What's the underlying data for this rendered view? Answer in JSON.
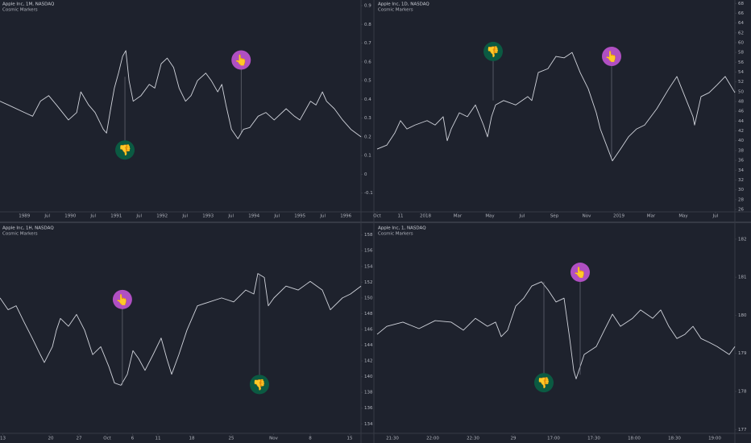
{
  "chart_data": [
    {
      "type": "line",
      "title": "Apple Inc, 1M, NASDAQ",
      "subtitle": "Cosmic Markers",
      "color": "#d1d4dc",
      "xlim": [
        1988.47,
        1996.33
      ],
      "ylim": [
        -0.2,
        0.93
      ],
      "yticks": [
        0.9,
        0.8,
        0.7,
        0.6,
        0.5,
        0.4,
        0.3,
        0.2,
        0.1,
        0,
        -0.1
      ],
      "xticks": [
        1989,
        {
          "value": 1989.5,
          "label": "Jul"
        },
        1990,
        {
          "value": 1990.5,
          "label": "Jul"
        },
        1991,
        {
          "value": 1991.5,
          "label": "Jul"
        },
        1992,
        {
          "value": 1992.5,
          "label": "Jul"
        },
        1993,
        {
          "value": 1993.5,
          "label": "Jul"
        },
        1994,
        {
          "value": 1994.5,
          "label": "Jul"
        },
        1995,
        {
          "value": 1995.5,
          "label": "Jul"
        },
        1996
      ],
      "x": [
        1988.47,
        1988.65,
        1989.0,
        1989.18,
        1989.35,
        1989.53,
        1989.7,
        1989.96,
        1990.14,
        1990.23,
        1990.4,
        1990.54,
        1990.72,
        1990.79,
        1990.88,
        1990.96,
        1991.05,
        1991.14,
        1991.21,
        1991.28,
        1991.37,
        1991.54,
        1991.72,
        1991.84,
        1991.98,
        1992.11,
        1992.25,
        1992.37,
        1992.51,
        1992.63,
        1992.77,
        1992.95,
        1993.07,
        1993.21,
        1993.3,
        1993.39,
        1993.51,
        1993.65,
        1993.77,
        1993.91,
        1994.09,
        1994.26,
        1994.44,
        1994.7,
        1994.88,
        1995.0,
        1995.23,
        1995.35,
        1995.49,
        1995.58,
        1995.75,
        1995.93,
        1996.11,
        1996.33
      ],
      "values": [
        0.39,
        0.37,
        0.33,
        0.31,
        0.39,
        0.42,
        0.37,
        0.29,
        0.33,
        0.44,
        0.37,
        0.33,
        0.24,
        0.22,
        0.35,
        0.46,
        0.54,
        0.63,
        0.66,
        0.5,
        0.39,
        0.42,
        0.48,
        0.46,
        0.59,
        0.62,
        0.57,
        0.46,
        0.39,
        0.42,
        0.5,
        0.54,
        0.5,
        0.44,
        0.48,
        0.37,
        0.24,
        0.19,
        0.24,
        0.25,
        0.31,
        0.33,
        0.29,
        0.35,
        0.31,
        0.29,
        0.39,
        0.37,
        0.44,
        0.39,
        0.35,
        0.29,
        0.24,
        0.2
      ],
      "markers": [
        {
          "x": 1991.19,
          "y": 0.13,
          "anchor": 0.52,
          "label": "👎",
          "color": "#0b5a42"
        },
        {
          "x": 1993.72,
          "y": 0.61,
          "anchor": 0.22,
          "label": "👆",
          "color": "#b04fc2"
        }
      ]
    },
    {
      "type": "line",
      "title": "Apple Inc, 1D, NASDAQ",
      "subtitle": "Cosmic Markers",
      "color": "#d1d4dc",
      "xlim": [
        -0.1,
        22.2
      ],
      "ylim": [
        25.5,
        68.7
      ],
      "yticks": [
        68,
        66,
        64,
        62,
        60,
        58,
        56,
        54,
        52,
        50,
        48,
        46,
        44,
        42,
        40,
        38,
        36,
        34,
        32,
        30,
        28,
        26
      ],
      "xticks": [
        {
          "value": 0,
          "label": "Oct"
        },
        {
          "value": 1.45,
          "label": "11"
        },
        {
          "value": 3,
          "label": "2018"
        },
        {
          "value": 5,
          "label": "Mar"
        },
        {
          "value": 7,
          "label": "May"
        },
        {
          "value": 9,
          "label": "Jul"
        },
        {
          "value": 11,
          "label": "Sep"
        },
        {
          "value": 13,
          "label": "Nov"
        },
        {
          "value": 15,
          "label": "2019"
        },
        {
          "value": 17,
          "label": "Mar"
        },
        {
          "value": 19,
          "label": "May"
        },
        {
          "value": 21,
          "label": "Jul"
        }
      ],
      "x": [
        0,
        0.6,
        1.1,
        1.45,
        1.85,
        2.35,
        3.1,
        3.6,
        4.1,
        4.35,
        4.6,
        5.1,
        5.6,
        6.1,
        6.6,
        6.85,
        7.1,
        7.35,
        7.85,
        8.6,
        9.35,
        9.6,
        10.0,
        10.6,
        11.1,
        11.6,
        12.1,
        12.6,
        13.1,
        13.6,
        13.85,
        14.6,
        15.1,
        15.6,
        16.1,
        16.6,
        17.35,
        18.1,
        18.6,
        19.6,
        19.7,
        20.1,
        20.6,
        21.1,
        21.6,
        22.2
      ],
      "values": [
        38.3,
        39.1,
        41.6,
        44.1,
        42.4,
        43.2,
        44.1,
        43.2,
        44.9,
        40.0,
        42.4,
        45.7,
        44.9,
        47.3,
        43.2,
        40.8,
        44.9,
        47.3,
        48.2,
        47.3,
        49.0,
        48.2,
        53.9,
        54.7,
        57.2,
        56.9,
        58.0,
        53.9,
        50.6,
        45.7,
        42.4,
        35.9,
        38.3,
        40.8,
        42.4,
        43.2,
        46.5,
        50.6,
        53.1,
        44.9,
        43.2,
        49.0,
        49.8,
        51.4,
        53.1,
        49.8
      ],
      "markers": [
        {
          "x": 7.2,
          "y": 58.2,
          "anchor": 48.2,
          "label": "👎",
          "color": "#0b5a42"
        },
        {
          "x": 14.55,
          "y": 57.2,
          "anchor": 36.7,
          "label": "👆",
          "color": "#b04fc2"
        }
      ]
    },
    {
      "type": "line",
      "title": "Apple Inc, 1H, NASDAQ",
      "subtitle": "Cosmic Markers",
      "color": "#d1d4dc",
      "xlim": [
        -9,
        55
      ],
      "ylim": [
        132.8,
        159.4
      ],
      "yticks": [
        158,
        156,
        154,
        152,
        150,
        148,
        146,
        144,
        142,
        140,
        138,
        136,
        134
      ],
      "xticks": [
        {
          "value": -8.5,
          "label": "13"
        },
        {
          "value": 0,
          "label": "20"
        },
        {
          "value": 5,
          "label": "27"
        },
        {
          "value": 10,
          "label": "Oct"
        },
        {
          "value": 14.5,
          "label": "6"
        },
        {
          "value": 19,
          "label": "11"
        },
        {
          "value": 25,
          "label": "18"
        },
        {
          "value": 32,
          "label": "25"
        },
        {
          "value": 39.5,
          "label": "Nov"
        },
        {
          "value": 46,
          "label": "8"
        },
        {
          "value": 53,
          "label": "15"
        }
      ],
      "x": [
        -9,
        -7.57,
        -6.14,
        -4.71,
        -3.29,
        -1.86,
        -1.14,
        0.29,
        1.0,
        1.71,
        3.14,
        4.57,
        6.0,
        7.43,
        8.86,
        10.29,
        11.29,
        12.43,
        13.57,
        14.57,
        15.57,
        16.71,
        18.14,
        19.57,
        20.57,
        21.43,
        22.71,
        24.14,
        26.0,
        28.14,
        30.29,
        32.43,
        34.57,
        36.0,
        36.71,
        37.86,
        38.57,
        39.57,
        41.71,
        43.86,
        46.0,
        48.14,
        49.57,
        51.71,
        53.14,
        55
      ],
      "values": [
        150.0,
        148.5,
        149.0,
        146.9,
        144.9,
        142.8,
        141.8,
        143.8,
        145.9,
        147.4,
        146.4,
        147.9,
        145.9,
        142.8,
        143.8,
        141.3,
        139.2,
        138.9,
        140.3,
        143.3,
        142.3,
        140.8,
        142.8,
        144.9,
        142.3,
        140.3,
        142.8,
        145.9,
        149.0,
        149.5,
        150.0,
        149.5,
        151.0,
        150.5,
        153.1,
        152.6,
        149.0,
        150.0,
        151.5,
        151.0,
        152.1,
        151.0,
        148.5,
        150.0,
        150.5,
        151.5
      ],
      "markers": [
        {
          "x": 12.7,
          "y": 149.8,
          "anchor": 138.9,
          "label": "👆",
          "color": "#b04fc2"
        },
        {
          "x": 37,
          "y": 139.0,
          "anchor": 153.1,
          "label": "👎",
          "color": "#0b5a42"
        }
      ]
    },
    {
      "type": "line",
      "title": "Apple Inc, 1, NASDAQ",
      "subtitle": "Cosmic Markers",
      "color": "#d1d4dc",
      "xlim": [
        -0.42,
        8.5
      ],
      "ylim": [
        176.9,
        182.4
      ],
      "yticks": [
        182,
        181,
        180,
        179,
        178,
        177
      ],
      "xticks": [
        {
          "value": 0,
          "label": "21:30"
        },
        {
          "value": 1,
          "label": "22:00"
        },
        {
          "value": 2,
          "label": "22:30"
        },
        {
          "value": 3,
          "label": "29"
        },
        {
          "value": 4,
          "label": "17:00"
        },
        {
          "value": 5,
          "label": "17:30"
        },
        {
          "value": 6,
          "label": "18:00"
        },
        {
          "value": 7,
          "label": "18:30"
        },
        {
          "value": 8,
          "label": "19:00"
        }
      ],
      "x": [
        -0.38,
        -0.14,
        0.26,
        0.66,
        1.06,
        1.46,
        1.76,
        2.06,
        2.36,
        2.56,
        2.7,
        2.86,
        3.06,
        3.26,
        3.46,
        3.7,
        3.86,
        4.06,
        4.26,
        4.4,
        4.5,
        4.56,
        4.76,
        5.06,
        5.26,
        5.46,
        5.66,
        5.96,
        6.16,
        6.46,
        6.66,
        6.86,
        7.06,
        7.26,
        7.46,
        7.66,
        7.86,
        8.06,
        8.36,
        8.5
      ],
      "values": [
        179.5,
        179.71,
        179.82,
        179.65,
        179.86,
        179.82,
        179.61,
        179.92,
        179.71,
        179.82,
        179.44,
        179.61,
        180.24,
        180.45,
        180.77,
        180.88,
        180.67,
        180.35,
        180.45,
        179.39,
        178.55,
        178.33,
        178.97,
        179.18,
        179.61,
        180.03,
        179.71,
        179.92,
        180.14,
        179.92,
        180.14,
        179.71,
        179.39,
        179.5,
        179.71,
        179.39,
        179.29,
        179.18,
        178.97,
        179.18
      ],
      "markers": [
        {
          "x": 3.76,
          "y": 178.23,
          "anchor": 180.88,
          "label": "👎",
          "color": "#0b5a42"
        },
        {
          "x": 4.66,
          "y": 181.13,
          "anchor": 178.44,
          "label": "👆",
          "color": "#b04fc2"
        }
      ]
    }
  ]
}
